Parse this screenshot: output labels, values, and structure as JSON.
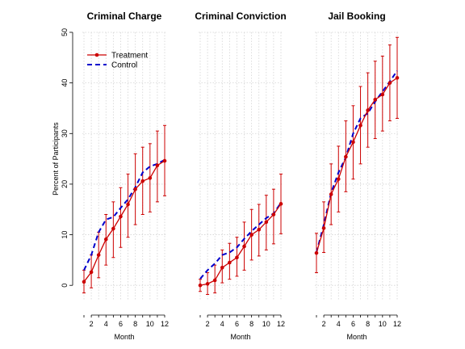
{
  "chart_data": [
    {
      "type": "line",
      "title": "Criminal Charge",
      "xlabel": "Month",
      "ylabel": "Percent of Participants",
      "ylim": [
        -3,
        50
      ],
      "yticks": [
        0,
        10,
        20,
        30,
        40,
        50
      ],
      "xlim": [
        1,
        12
      ],
      "xticks": [
        2,
        4,
        6,
        8,
        10,
        12
      ],
      "grid": true,
      "legend": "top-left",
      "x": [
        1,
        2,
        3,
        4,
        5,
        6,
        7,
        8,
        9,
        10,
        11,
        12
      ],
      "series": [
        {
          "name": "Treatment",
          "color": "#cc0000",
          "style": "solid-points-errorbars",
          "values": [
            0.7,
            2.6,
            6.0,
            9.1,
            11.2,
            13.6,
            16.0,
            19.0,
            20.6,
            21.2,
            23.7,
            24.6
          ],
          "lower": [
            -1.5,
            -0.5,
            1.5,
            4.0,
            5.5,
            7.5,
            9.5,
            12.0,
            14.0,
            14.5,
            16.5,
            17.7
          ],
          "upper": [
            3.0,
            6.0,
            10.5,
            14.0,
            16.5,
            19.3,
            22.0,
            26.0,
            27.3,
            28.0,
            30.5,
            31.6
          ]
        },
        {
          "name": "Control",
          "color": "#0000cc",
          "style": "dashed",
          "values": [
            3.0,
            6.0,
            10.5,
            13.0,
            13.5,
            15.3,
            17.0,
            19.4,
            22.3,
            23.5,
            24.0,
            24.8
          ]
        }
      ]
    },
    {
      "type": "line",
      "title": "Criminal Conviction",
      "xlabel": "Month",
      "ylim": [
        -3,
        50
      ],
      "xlim": [
        1,
        12
      ],
      "xticks": [
        2,
        4,
        6,
        8,
        10,
        12
      ],
      "grid": true,
      "x": [
        1,
        2,
        3,
        4,
        5,
        6,
        7,
        8,
        9,
        10,
        11,
        12
      ],
      "series": [
        {
          "name": "Treatment",
          "color": "#cc0000",
          "style": "solid-points-errorbars",
          "values": [
            0.0,
            0.3,
            1.0,
            3.5,
            4.5,
            5.5,
            7.7,
            10.0,
            11.0,
            12.5,
            14.0,
            16.1
          ],
          "lower": [
            -1.2,
            -1.8,
            -1.5,
            0.5,
            1.2,
            1.8,
            3.0,
            5.0,
            5.8,
            7.0,
            8.2,
            10.2
          ],
          "upper": [
            1.2,
            2.5,
            4.0,
            7.0,
            8.3,
            9.5,
            12.5,
            15.0,
            16.0,
            17.8,
            19.0,
            22.0
          ]
        },
        {
          "name": "Control",
          "color": "#0000cc",
          "style": "dashed",
          "values": [
            1.3,
            3.0,
            4.3,
            6.0,
            6.5,
            7.5,
            9.2,
            10.7,
            12.0,
            13.3,
            14.2,
            16.3
          ]
        }
      ]
    },
    {
      "type": "line",
      "title": "Jail Booking",
      "xlabel": "Month",
      "ylim": [
        -3,
        50
      ],
      "xlim": [
        1,
        12
      ],
      "xticks": [
        2,
        4,
        6,
        8,
        10,
        12
      ],
      "grid": true,
      "x": [
        1,
        2,
        3,
        4,
        5,
        6,
        7,
        8,
        9,
        10,
        11,
        12
      ],
      "series": [
        {
          "name": "Treatment",
          "color": "#cc0000",
          "style": "solid-points-errorbars",
          "values": [
            6.4,
            11.3,
            18.0,
            21.0,
            25.4,
            28.3,
            31.6,
            34.6,
            36.7,
            37.7,
            40.0,
            41.0
          ],
          "lower": [
            2.5,
            6.5,
            12.0,
            14.5,
            18.5,
            21.0,
            24.0,
            27.3,
            29.0,
            30.5,
            32.5,
            33.0
          ],
          "upper": [
            10.3,
            16.5,
            24.0,
            27.5,
            32.5,
            35.5,
            39.3,
            42.0,
            44.3,
            45.3,
            47.5,
            49.0
          ]
        },
        {
          "name": "Control",
          "color": "#0000cc",
          "style": "dashed",
          "values": [
            6.5,
            12.0,
            18.3,
            22.3,
            25.3,
            30.0,
            33.0,
            34.0,
            36.3,
            38.3,
            40.3,
            42.4
          ]
        }
      ]
    }
  ]
}
